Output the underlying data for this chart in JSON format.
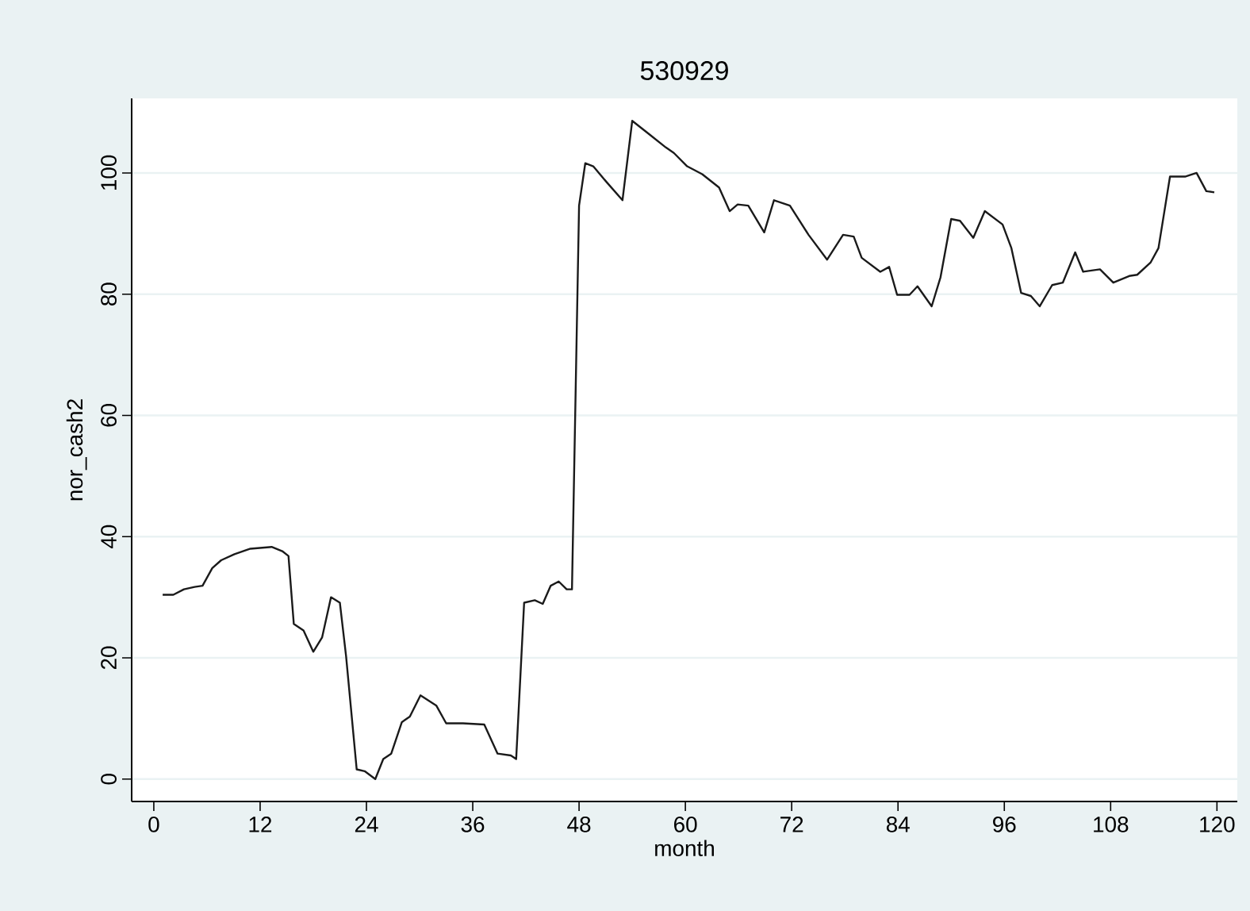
{
  "chart_data": {
    "type": "line",
    "title": "530929",
    "xlabel": "month",
    "ylabel": "nor_cash2",
    "x": [
      1.0,
      2.2,
      3.4,
      4.6,
      5.5,
      6.6,
      7.6,
      9.1,
      10.9,
      13.3,
      14.5,
      15.2,
      15.8,
      16.9,
      18.0,
      19.0,
      20.0,
      21.0,
      21.7,
      22.9,
      23.8,
      25.0,
      25.9,
      26.8,
      28.0,
      28.9,
      30.1,
      31.9,
      33.0,
      34.9,
      37.3,
      38.8,
      40.3,
      40.9,
      41.8,
      43.0,
      43.9,
      44.8,
      45.7,
      46.6,
      47.2,
      48.0,
      48.7,
      49.6,
      51.1,
      52.9,
      54.0,
      55.9,
      57.8,
      58.7,
      60.2,
      61.9,
      63.8,
      65.0,
      65.9,
      67.1,
      68.9,
      70.0,
      71.8,
      73.9,
      76.0,
      77.8,
      79.0,
      79.9,
      82.0,
      83.0,
      83.9,
      85.3,
      86.2,
      87.8,
      88.8,
      90.0,
      91.0,
      92.5,
      93.8,
      95.8,
      96.8,
      97.9,
      99.0,
      100.0,
      101.4,
      102.6,
      104.0,
      104.9,
      106.8,
      108.3,
      110.1,
      111.0,
      112.5,
      113.4,
      114.7,
      116.4,
      117.7,
      118.8,
      119.7
    ],
    "series": [
      {
        "color": "#1a1a1a",
        "values": [
          30.4,
          30.4,
          31.3,
          31.7,
          31.9,
          34.8,
          36.1,
          37.1,
          38.0,
          38.3,
          37.6,
          36.8,
          25.6,
          24.5,
          21.0,
          23.4,
          30.0,
          29.1,
          20.3,
          1.6,
          1.3,
          0,
          3.3,
          4.2,
          9.4,
          10.3,
          13.8,
          12.1,
          9.2,
          9.2,
          9.0,
          4.2,
          3.9,
          3.3,
          29.1,
          29.5,
          28.9,
          31.9,
          32.6,
          31.3,
          31.3,
          94.6,
          101.6,
          101.1,
          98.5,
          95.5,
          108.6,
          106.4,
          104.2,
          103.3,
          101.1,
          99.8,
          97.6,
          93.7,
          94.8,
          94.6,
          90.2,
          95.5,
          94.6,
          89.8,
          85.7,
          89.8,
          89.5,
          86.0,
          83.7,
          84.5,
          79.9,
          79.9,
          81.3,
          78.0,
          82.8,
          92.4,
          92.1,
          89.3,
          93.7,
          91.5,
          87.6,
          80.2,
          79.7,
          78.0,
          81.5,
          81.9,
          86.9,
          83.7,
          84.1,
          81.9,
          83.0,
          83.2,
          85.2,
          87.6,
          99.4,
          99.4,
          100.0,
          97.0,
          96.8
        ]
      }
    ],
    "xlim": [
      -2.5,
      122.3
    ],
    "ylim": [
      -3.7,
      112.3
    ],
    "xticks": [
      0,
      12,
      24,
      36,
      48,
      60,
      72,
      84,
      96,
      108,
      120
    ],
    "yticks": [
      0,
      20,
      40,
      60,
      80,
      100
    ],
    "grid": "y"
  }
}
